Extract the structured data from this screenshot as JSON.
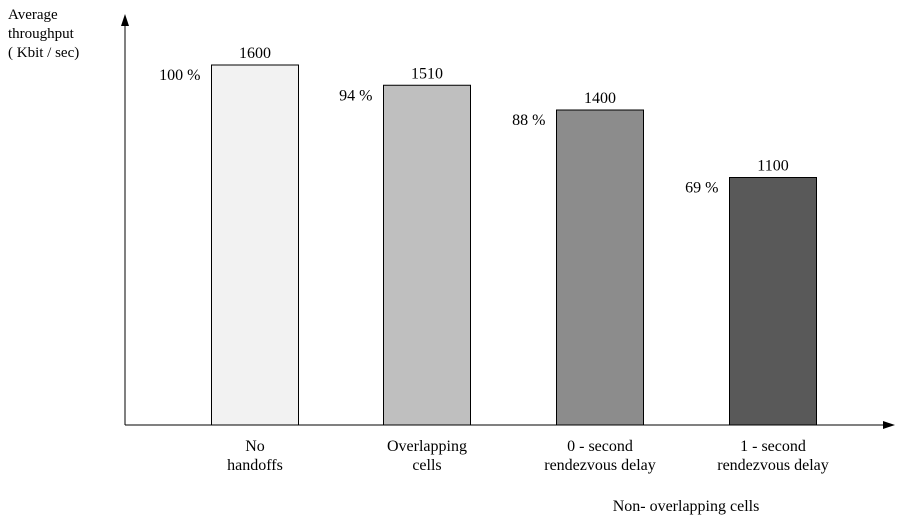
{
  "chart_data": {
    "type": "bar",
    "ylabel_lines": [
      "Average",
      "throughput",
      "( Kbit / sec)"
    ],
    "xlabel": "",
    "ylim": [
      0,
      1800
    ],
    "grid": false,
    "legend": "none",
    "categories": [
      [
        "No",
        "handoffs"
      ],
      [
        "Overlapping",
        "cells"
      ],
      [
        "0 - second",
        "rendezvous delay"
      ],
      [
        "1 - second",
        "rendezvous delay"
      ]
    ],
    "values": [
      1600,
      1510,
      1400,
      1100
    ],
    "value_labels": [
      "1600",
      "1510",
      "1400",
      "1100"
    ],
    "percent_labels": [
      "100 %",
      "94 %",
      "88 %",
      "69 %"
    ],
    "bar_colors": [
      "#f2f2f2",
      "#bfbfbf",
      "#8c8c8c",
      "#595959"
    ],
    "group_label": "Non- overlapping cells"
  }
}
